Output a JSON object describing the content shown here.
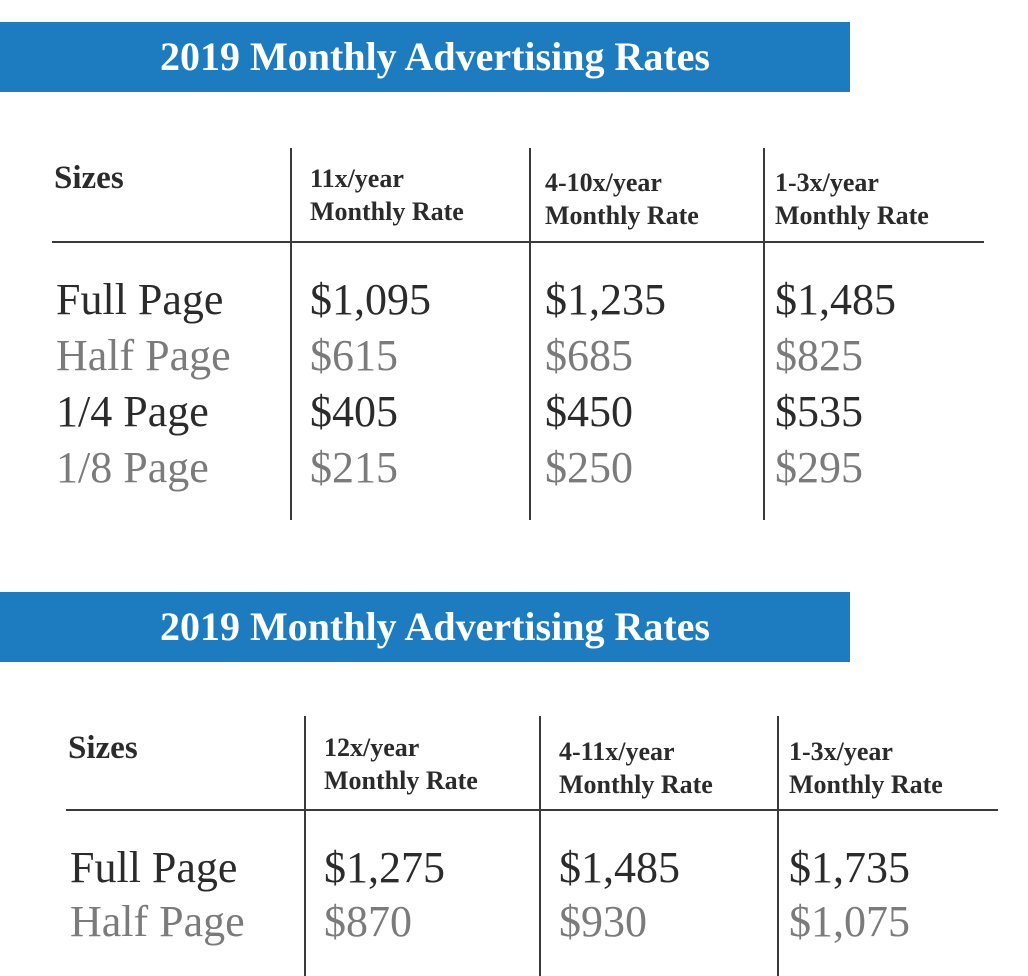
{
  "tables": [
    {
      "title": "2019 Monthly Advertising Rates",
      "sizes_header": "Sizes",
      "columns": [
        {
          "line1": "11x/year",
          "line2": "Monthly Rate"
        },
        {
          "line1": "4-10x/year",
          "line2": "Monthly Rate"
        },
        {
          "line1": "1-3x/year",
          "line2": "Monthly Rate"
        }
      ],
      "rows": [
        {
          "label": "Full Page",
          "values": [
            "$1,095",
            "$1,235",
            "$1,485"
          ]
        },
        {
          "label": "Half Page",
          "values": [
            "$615",
            "$685",
            "$825"
          ]
        },
        {
          "label": "1/4 Page",
          "values": [
            "$405",
            "$450",
            "$535"
          ]
        },
        {
          "label": "1/8 Page",
          "values": [
            "$215",
            "$250",
            "$295"
          ]
        }
      ]
    },
    {
      "title": "2019 Monthly Advertising Rates",
      "sizes_header": "Sizes",
      "columns": [
        {
          "line1": "12x/year",
          "line2": "Monthly Rate"
        },
        {
          "line1": "4-11x/year",
          "line2": "Monthly Rate"
        },
        {
          "line1": "1-3x/year",
          "line2": "Monthly Rate"
        }
      ],
      "rows": [
        {
          "label": "Full Page",
          "values": [
            "$1,275",
            "$1,485",
            "$1,735"
          ]
        },
        {
          "label": "Half Page",
          "values": [
            "$870",
            "$930",
            "$1,075"
          ]
        }
      ]
    }
  ],
  "colors": {
    "banner": "#1d7cc0",
    "text_dark": "#2b2b2b",
    "text_light": "#7b7b7b"
  }
}
